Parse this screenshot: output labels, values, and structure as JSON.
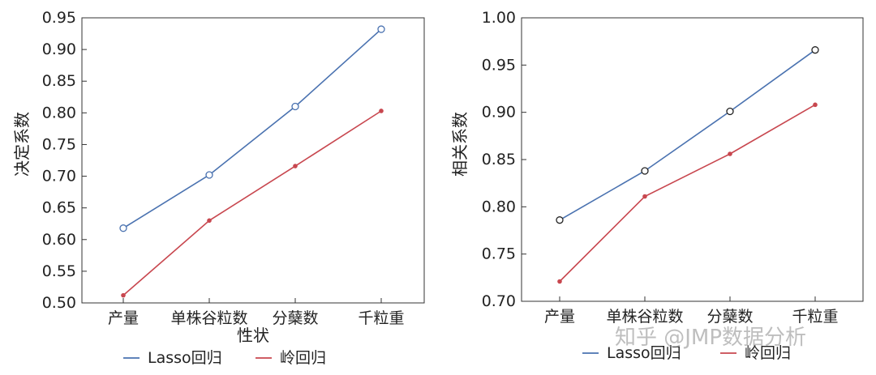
{
  "watermark": "知乎 @JMP数据分析",
  "chart_data": [
    {
      "type": "line",
      "categories": [
        "产量",
        "单株谷粒数",
        "分蘖数",
        "千粒重"
      ],
      "xlabel": "性状",
      "ylabel": "决定系数",
      "ylim": [
        0.5,
        0.95
      ],
      "yticks": [
        "0.50",
        "0.55",
        "0.60",
        "0.65",
        "0.70",
        "0.75",
        "0.80",
        "0.85",
        "0.90",
        "0.95"
      ],
      "legend_position": "bottom",
      "series": [
        {
          "name": "Lasso回归",
          "color": "#4a72b0",
          "marker": "open-circle",
          "values": [
            0.618,
            0.702,
            0.81,
            0.932
          ]
        },
        {
          "name": "岭回归",
          "color": "#c8474f",
          "marker": "dot",
          "values": [
            0.512,
            0.63,
            0.716,
            0.803
          ]
        }
      ]
    },
    {
      "type": "line",
      "categories": [
        "产量",
        "单株谷粒数",
        "分蘖数",
        "千粒重"
      ],
      "xlabel": "",
      "ylabel": "相关系数",
      "ylim": [
        0.7,
        1.0
      ],
      "yticks": [
        "0.70",
        "0.75",
        "0.80",
        "0.85",
        "0.90",
        "0.95",
        "1.00"
      ],
      "legend_position": "bottom",
      "series": [
        {
          "name": "Lasso回归",
          "color": "#4a72b0",
          "marker": "open-circle-dark",
          "values": [
            0.786,
            0.838,
            0.901,
            0.966
          ]
        },
        {
          "name": "岭回归",
          "color": "#c8474f",
          "marker": "dot",
          "values": [
            0.721,
            0.811,
            0.856,
            0.908
          ]
        }
      ]
    }
  ]
}
